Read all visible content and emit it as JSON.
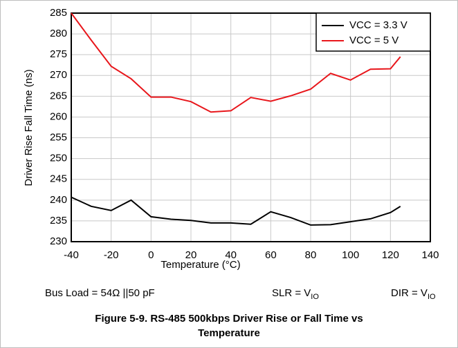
{
  "chart_data": {
    "type": "line",
    "x_label": "Temperature (°C)",
    "y_label": "Driver Rise Fall Time (ns)",
    "x": [
      -40,
      -30,
      -20,
      -10,
      0,
      10,
      20,
      30,
      40,
      50,
      60,
      70,
      80,
      90,
      100,
      110,
      120,
      125
    ],
    "series": [
      {
        "name": "VCC = 3.3 V",
        "color": "#000000",
        "values": [
          240.7,
          238.5,
          237.5,
          240.0,
          236.0,
          235.4,
          235.1,
          234.5,
          234.5,
          234.2,
          237.2,
          235.8,
          234.0,
          234.1,
          234.8,
          235.5,
          237.0,
          238.5
        ]
      },
      {
        "name": "VCC = 5 V",
        "color": "#e8161b",
        "values": [
          285.0,
          278.5,
          272.2,
          269.2,
          264.8,
          264.8,
          263.7,
          261.2,
          261.5,
          264.7,
          263.8,
          265.1,
          266.7,
          270.5,
          268.9,
          271.5,
          271.6,
          274.5
        ]
      }
    ],
    "xlim": [
      -40,
      140
    ],
    "xticks": [
      -40,
      -20,
      0,
      20,
      40,
      60,
      80,
      100,
      120,
      140
    ],
    "ylim": [
      230,
      285
    ],
    "yticks": [
      230,
      235,
      240,
      245,
      250,
      255,
      260,
      265,
      270,
      275,
      280,
      285
    ],
    "grid": true,
    "legend": "upper right",
    "notes": [
      {
        "text": "Bus Load = 54Ω ||50 pF"
      },
      {
        "text": "SLR = V",
        "sub": "IO"
      },
      {
        "text": "DIR = V",
        "sub": "IO"
      }
    ],
    "caption": [
      "Figure 5-9. RS-485 500kbps Driver Rise or Fall Time vs",
      "Temperature"
    ]
  }
}
